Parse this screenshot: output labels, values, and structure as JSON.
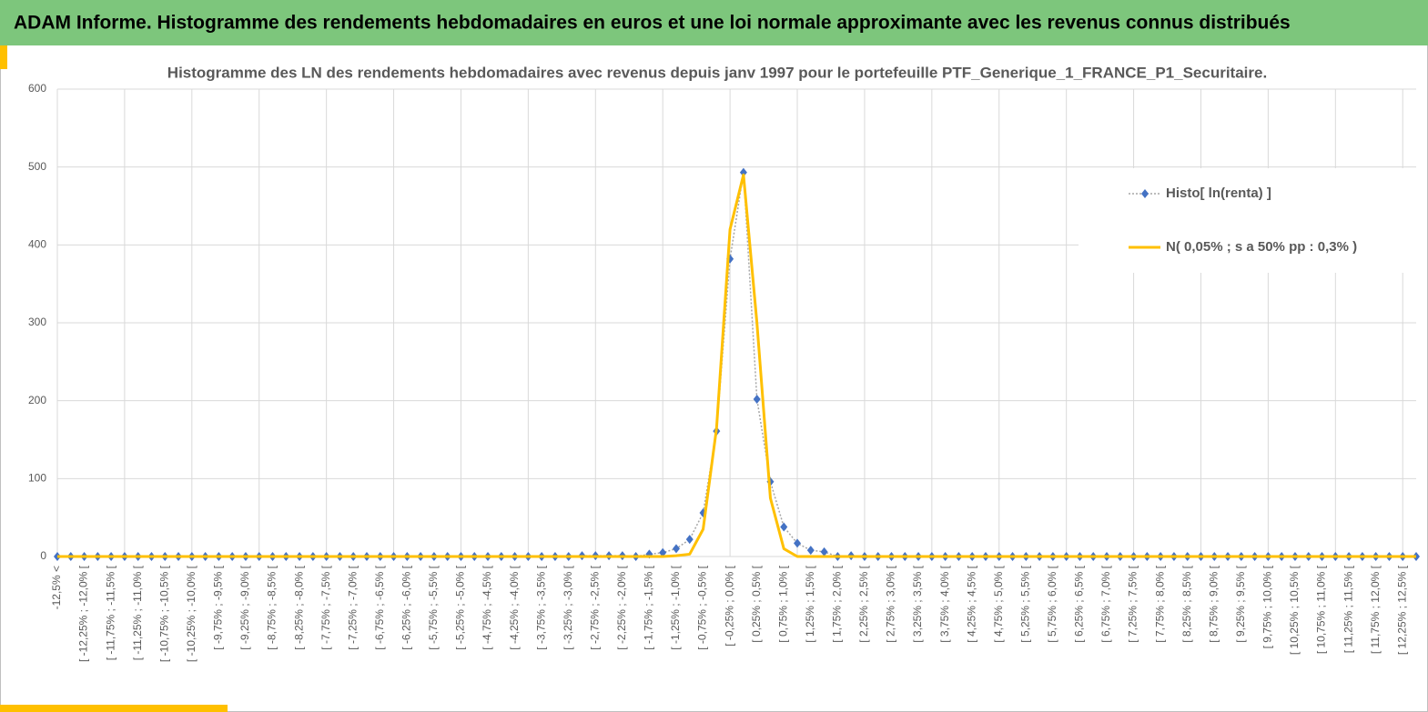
{
  "header": {
    "title": "ADAM Informe. Histogramme des rendements hebdomadaires en euros et une loi normale approximante avec les revenus connus distribués"
  },
  "chart_data": {
    "type": "line",
    "title": "Histogramme des LN des rendements hebdomadaires avec revenus depuis janv 1997 pour le portefeuille PTF_Generique_1_FRANCE_P1_Securitaire.",
    "categories": [
      "-12,5% <",
      null,
      "[ -12,25% ; -12,0% [",
      null,
      "[ -11,75% ; -11,5% [",
      null,
      "[ -11,25% ; -11,0% [",
      null,
      "[ -10,75% ; -10,5% [",
      null,
      "[ -10,25% ; -10,0% [",
      null,
      "[ -9,75% ; -9,5% [",
      null,
      "[ -9,25% ; -9,0% [",
      null,
      "[ -8,75% ; -8,5% [",
      null,
      "[ -8,25% ; -8,0% [",
      null,
      "[ -7,75% ; -7,5% [",
      null,
      "[ -7,25% ; -7,0% [",
      null,
      "[ -6,75% ; -6,5% [",
      null,
      "[ -6,25% ; -6,0% [",
      null,
      "[ -5,75% ; -5,5% [",
      null,
      "[ -5,25% ; -5,0% [",
      null,
      "[ -4,75% ; -4,5% [",
      null,
      "[ -4,25% ; -4,0% [",
      null,
      "[ -3,75% ; -3,5% [",
      null,
      "[ -3,25% ; -3,0% [",
      null,
      "[ -2,75% ; -2,5% [",
      null,
      "[ -2,25% ; -2,0% [",
      null,
      "[ -1,75% ; -1,5% [",
      null,
      "[ -1,25% ; -1,0% [",
      null,
      "[ -0,75% ; -0,5% [",
      null,
      "[ -0,25% ; 0,0% [",
      null,
      "[ 0,25% ; 0,5% [",
      null,
      "[ 0,75% ; 1,0% [",
      null,
      "[ 1,25% ; 1,5% [",
      null,
      "[ 1,75% ; 2,0% [",
      null,
      "[ 2,25% ; 2,5% [",
      null,
      "[ 2,75% ; 3,0% [",
      null,
      "[ 3,25% ; 3,5% [",
      null,
      "[ 3,75% ; 4,0% [",
      null,
      "[ 4,25% ; 4,5% [",
      null,
      "[ 4,75% ; 5,0% [",
      null,
      "[ 5,25% ; 5,5% [",
      null,
      "[ 5,75% ; 6,0% [",
      null,
      "[ 6,25% ; 6,5% [",
      null,
      "[ 6,75% ; 7,0% [",
      null,
      "[ 7,25% ; 7,5% [",
      null,
      "[ 7,75% ; 8,0% [",
      null,
      "[ 8,25% ; 8,5% [",
      null,
      "[ 8,75% ; 9,0% [",
      null,
      "[ 9,25% ; 9,5% [",
      null,
      "[ 9,75% ; 10,0% [",
      null,
      "[ 10,25% ; 10,5% [",
      null,
      "[ 10,75% ; 11,0% [",
      null,
      "[ 11,25% ; 11,5% [",
      null,
      "[ 11,75% ; 12,0% [",
      null,
      "[ 12,25% ; 12,5% [",
      null
    ],
    "series": [
      {
        "name": "Histo[ ln(renta) ]",
        "color": "#4472c4",
        "values": [
          0,
          0,
          0,
          0,
          0,
          0,
          0,
          0,
          0,
          0,
          0,
          0,
          0,
          0,
          0,
          0,
          0,
          0,
          0,
          0,
          0,
          0,
          0,
          0,
          0,
          0,
          0,
          0,
          0,
          0,
          0,
          0,
          0,
          0,
          0,
          0,
          0,
          0,
          0,
          1,
          1,
          1,
          1,
          0,
          3,
          5,
          10,
          22,
          56,
          161,
          382,
          493,
          202,
          96,
          38,
          17,
          8,
          6,
          0,
          1,
          0,
          0,
          0,
          0,
          0,
          0,
          0,
          0,
          0,
          0,
          0,
          0,
          0,
          0,
          0,
          0,
          0,
          0,
          0,
          0,
          0,
          0,
          0,
          0,
          0,
          0,
          0,
          0,
          0,
          0,
          0,
          0,
          0,
          0,
          0,
          0,
          0,
          0,
          0,
          0,
          0,
          0
        ]
      },
      {
        "name": "N( 0,05% ; s a 50% pp : 0,3% )",
        "color": "#ffc000",
        "values": [
          0,
          0,
          0,
          0,
          0,
          0,
          0,
          0,
          0,
          0,
          0,
          0,
          0,
          0,
          0,
          0,
          0,
          0,
          0,
          0,
          0,
          0,
          0,
          0,
          0,
          0,
          0,
          0,
          0,
          0,
          0,
          0,
          0,
          0,
          0,
          0,
          0,
          0,
          0,
          0,
          0,
          0,
          0,
          0,
          0,
          0,
          1,
          3,
          35,
          165,
          420,
          490,
          300,
          75,
          10,
          0,
          0,
          0,
          0,
          0,
          0,
          0,
          0,
          0,
          0,
          0,
          0,
          0,
          0,
          0,
          0,
          0,
          0,
          0,
          0,
          0,
          0,
          0,
          0,
          0,
          0,
          0,
          0,
          0,
          0,
          0,
          0,
          0,
          0,
          0,
          0,
          0,
          0,
          0,
          0,
          0,
          0,
          0,
          0,
          0,
          0,
          0
        ]
      }
    ],
    "ylim": [
      0,
      600
    ],
    "yticks": [
      0,
      100,
      200,
      300,
      400,
      500,
      600
    ],
    "grid": true,
    "legend": "upper right"
  }
}
